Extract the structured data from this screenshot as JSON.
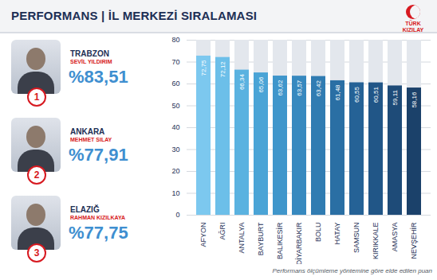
{
  "header": {
    "title": "PERFORMANS | İL MERKEZİ SIRALAMASI",
    "logo": "TÜRK KIZILAY"
  },
  "rankings": [
    {
      "rank": 1,
      "city": "TRABZON",
      "name": "SEVİL YILDIRIM",
      "score": 83.51,
      "score_label": "%83,51"
    },
    {
      "rank": 2,
      "city": "ANKARA",
      "name": "MEHMET SILAY",
      "score": 77.91,
      "score_label": "%77,91"
    },
    {
      "rank": 3,
      "city": "ELAZIĞ",
      "name": "RAHMAN KIZILKAYA",
      "score": 77.75,
      "score_label": "%77,75"
    }
  ],
  "chart_data": {
    "type": "bar",
    "caption": "Performans ölçümleme yöntemine göre elde edilen puan",
    "categories": [
      "AFYON",
      "AĞRI",
      "ANTALYA",
      "BAYBURT",
      "BALIKESİR",
      "DİYARBAKIR",
      "BOLU",
      "HATAY",
      "SAMSUN",
      "KIRIKKALE",
      "AMASYA",
      "NEVŞEHİR"
    ],
    "values": [
      72.75,
      72.12,
      66.34,
      65.06,
      63.62,
      63.57,
      63.42,
      61.48,
      60.55,
      60.51,
      59.11,
      58.16
    ],
    "value_labels": [
      "72,75",
      "72,12",
      "66,34",
      "65,06",
      "63,62",
      "63,57",
      "63,42",
      "61,48",
      "60,55",
      "60,51",
      "59,11",
      "58,16"
    ],
    "colors": [
      "#7cc8ef",
      "#6cbfe9",
      "#5ab2e0",
      "#4aa4d6",
      "#3f96cb",
      "#3789bf",
      "#307cb2",
      "#2a6fa4",
      "#256296",
      "#215687",
      "#1e4b78",
      "#1b416a"
    ],
    "ylim": [
      0,
      80
    ],
    "yticks": [
      0,
      10,
      20,
      30,
      40,
      50,
      60,
      70,
      80
    ],
    "grid": true,
    "data_labels": true
  }
}
